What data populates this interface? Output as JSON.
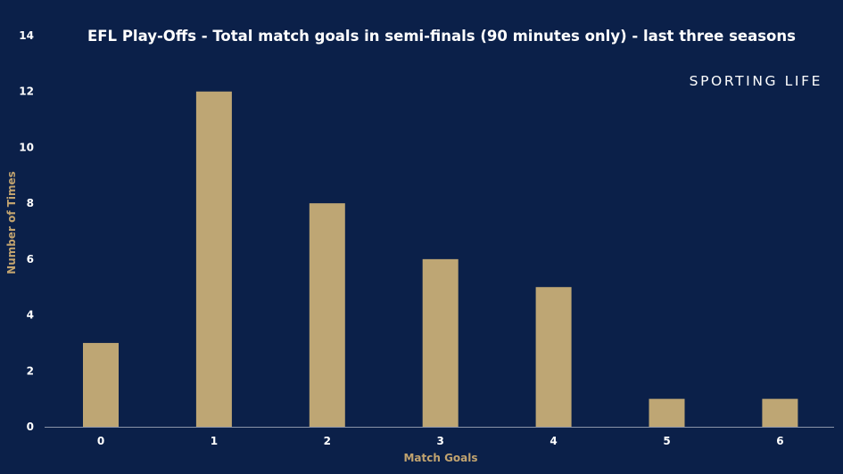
{
  "chart_data": {
    "type": "bar",
    "title": "EFL Play-Offs - Total match goals in semi-finals (90 minutes only) - last three seasons",
    "brand": "SPORTING LIFE",
    "xlabel": "Match Goals",
    "ylabel": "Number of Times",
    "categories": [
      "0",
      "1",
      "2",
      "3",
      "4",
      "5",
      "6"
    ],
    "values": [
      3,
      12,
      8,
      6,
      5,
      1,
      1
    ],
    "yticks": [
      "0",
      "2",
      "4",
      "6",
      "8",
      "10",
      "12",
      "14"
    ],
    "ylim": [
      0,
      14
    ],
    "grid": false,
    "legend": "none",
    "colors": {
      "background": "#0b2049",
      "bar": "#bea674",
      "axis_label": "#c1a36f",
      "text": "#ffffff"
    }
  }
}
